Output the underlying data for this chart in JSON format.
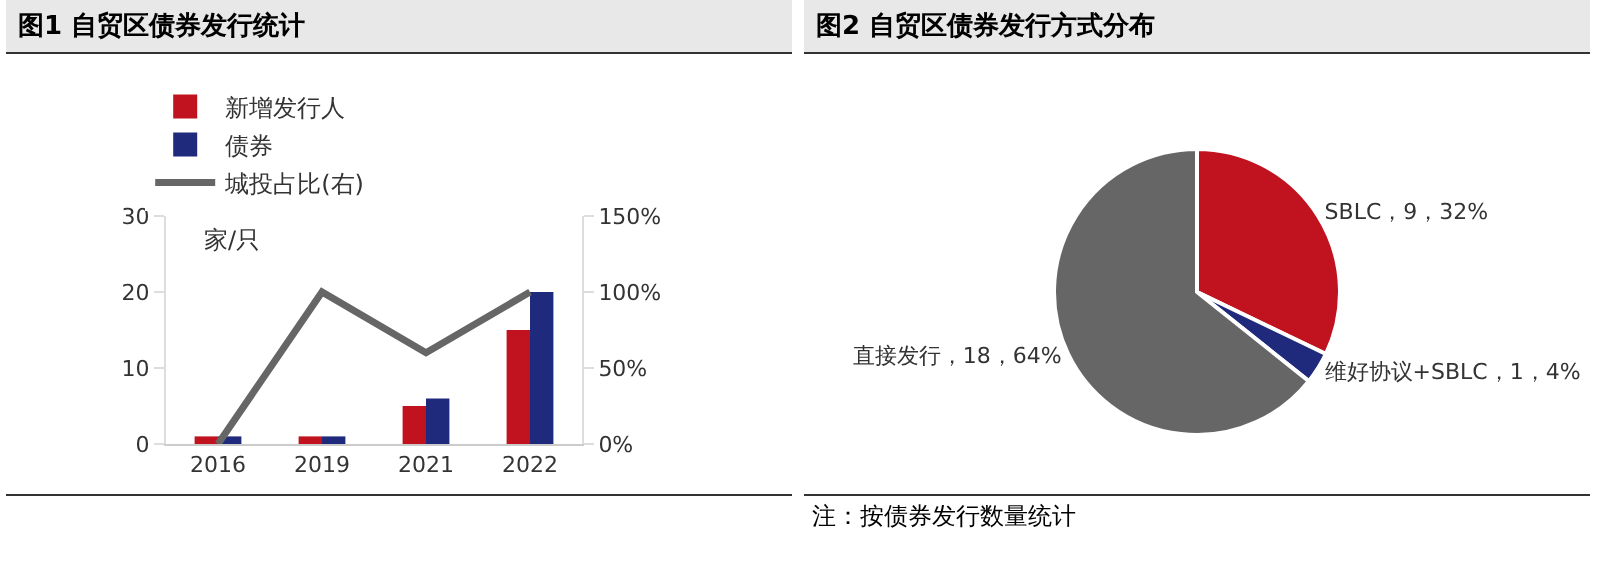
{
  "chart_data": [
    {
      "type": "bar",
      "title": "图1  自贸区债券发行统计",
      "ylabel": "家/只",
      "categories": [
        "2016",
        "2019",
        "2021",
        "2022"
      ],
      "series": [
        {
          "name": "新增发行人",
          "color": "#c0121f",
          "values": [
            1,
            1,
            5,
            15
          ]
        },
        {
          "name": "债券",
          "color": "#1f2a7c",
          "values": [
            1,
            1,
            6,
            20
          ]
        },
        {
          "name": "城投占比(右)",
          "type": "line",
          "axis": "y2",
          "color": "#666666",
          "values": [
            0,
            100,
            60,
            100
          ]
        }
      ],
      "ylim": [
        0,
        30
      ],
      "yticks": [
        0,
        10,
        20,
        30
      ],
      "y2lim": [
        0,
        150
      ],
      "y2ticks": [
        {
          "value": 0,
          "label": "0%"
        },
        {
          "value": 50,
          "label": "50%"
        },
        {
          "value": 100,
          "label": "100%"
        },
        {
          "value": 150,
          "label": "150%"
        }
      ],
      "grid": false,
      "legend": "top",
      "marker": "none"
    },
    {
      "type": "pie",
      "title": "图2  自贸区债券发行方式分布",
      "categories": [
        "SBLC",
        "维好协议+SBLC",
        "直接发行"
      ],
      "values": [
        9,
        1,
        18
      ],
      "value_labels": [
        "9，32%",
        "1，4%",
        "18，64%"
      ],
      "colors": [
        "#c0121f",
        "#1f2a7c",
        "#666666"
      ],
      "legend": false,
      "annotations": [
        "注：按债券发行数量统计"
      ]
    }
  ]
}
